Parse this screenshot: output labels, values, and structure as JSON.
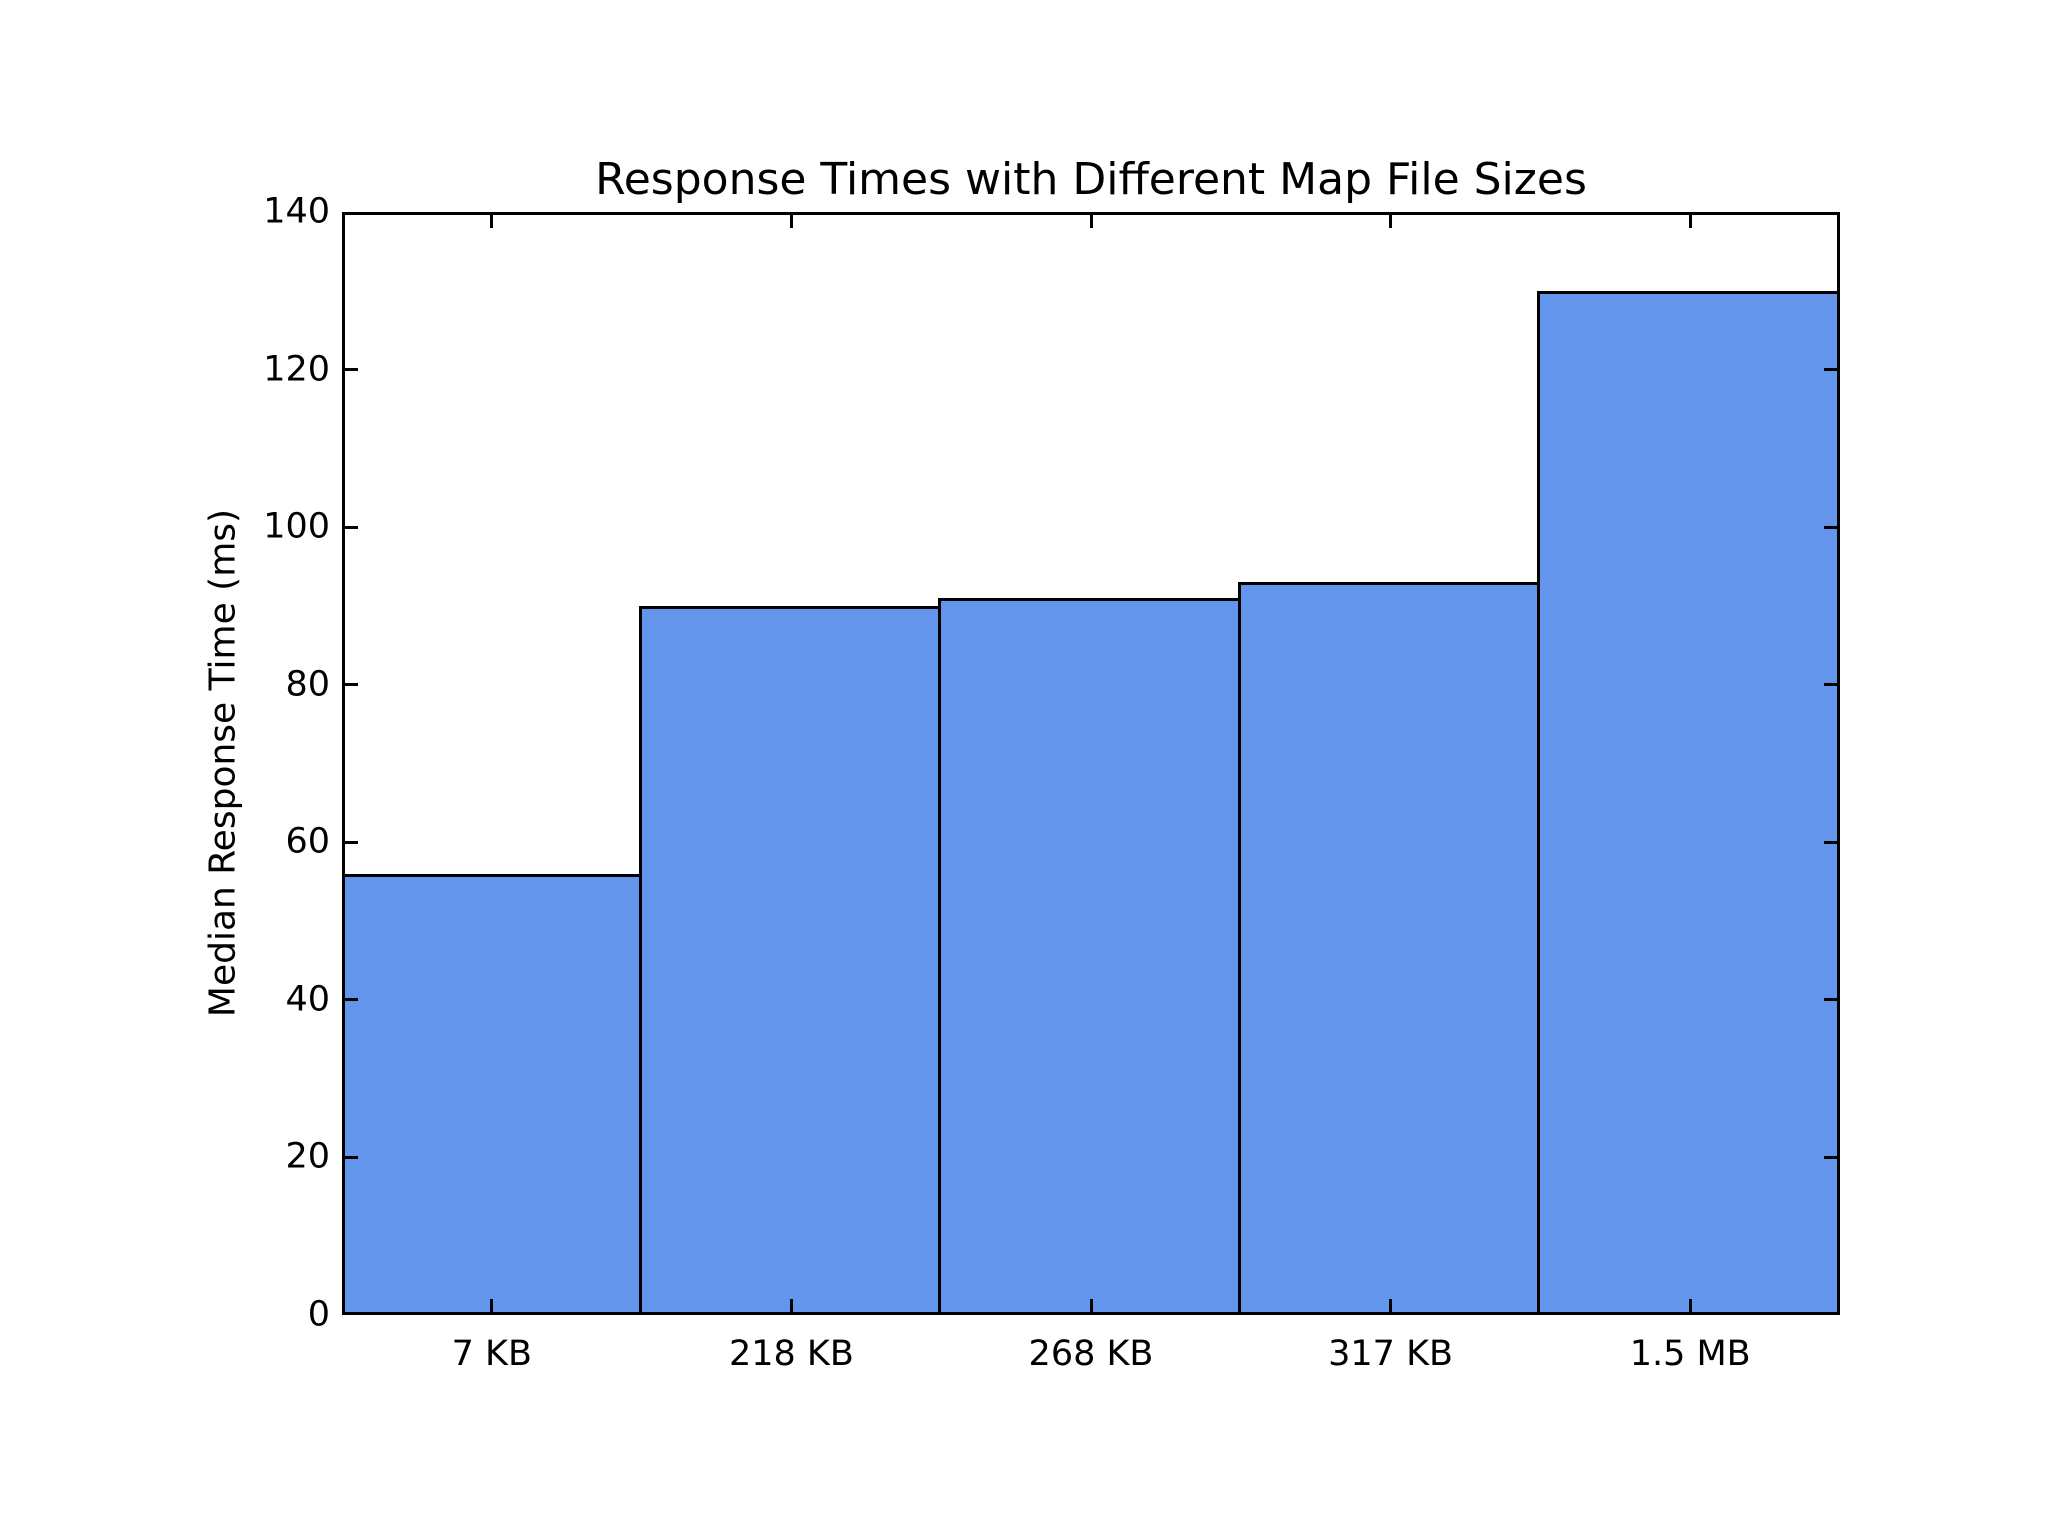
{
  "figure": {
    "background": "#ffffff"
  },
  "chart_data": {
    "type": "bar",
    "title": "Response Times with Different Map File Sizes",
    "ylabel": "Median Response Time (ms)",
    "xlabel": "",
    "categories": [
      "7 KB",
      "218 KB",
      "268 KB",
      "317 KB",
      "1.5 MB"
    ],
    "values": [
      56,
      90,
      91,
      93,
      130
    ],
    "ylim": [
      0,
      140
    ],
    "yticks": [
      0,
      20,
      40,
      60,
      80,
      100,
      120,
      140
    ],
    "grid": false,
    "legend": null,
    "bar_color": "#6495ed",
    "bar_edge_color": "#000000",
    "axis_color": "#000000",
    "text_color": "#000000",
    "tick_direction": "in",
    "ticks_on_all_sides": true
  }
}
